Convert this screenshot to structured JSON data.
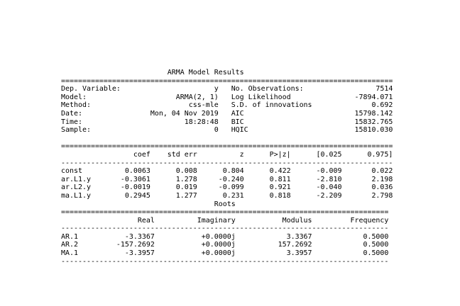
{
  "lines": [
    "                         ARMA Model Results                              ",
    "==============================================================================",
    "Dep. Variable:                      y   No. Observations:                 7514",
    "Model:                     ARMA(2, 1)   Log Likelihood               -7894.071",
    "Method:                       css-mle   S.D. of innovations              0.692",
    "Date:                Mon, 04 Nov 2019   AIC                          15798.142",
    "Time:                        18:28:48   BIC                          15832.765",
    "Sample:                             0   HQIC                         15810.030",
    "",
    "==============================================================================",
    "                 coef    std err          z      P>|z|      [0.025      0.975]",
    "------------------------------------------------------------------------------",
    "const          0.0063      0.008      0.804      0.422      -0.009       0.022",
    "ar.L1.y       -0.3061      1.278     -0.240      0.811      -2.810       2.198",
    "ar.L2.y       -0.0019      0.019     -0.099      0.921      -0.040       0.036",
    "ma.L1.y        0.2945      1.277      0.231      0.818      -2.209       2.798",
    "                                    Roots                                    ",
    "=============================================================================",
    "                  Real          Imaginary           Modulus         Frequency",
    "-----------------------------------------------------------------------------",
    "AR.1           -3.3367           +0.0000j            3.3367            0.5000",
    "AR.2         -157.2692           +0.0000j          157.2692            0.5000",
    "MA.1           -3.3957           +0.0000j            3.3957            0.5000",
    "-----------------------------------------------------------------------------"
  ]
}
